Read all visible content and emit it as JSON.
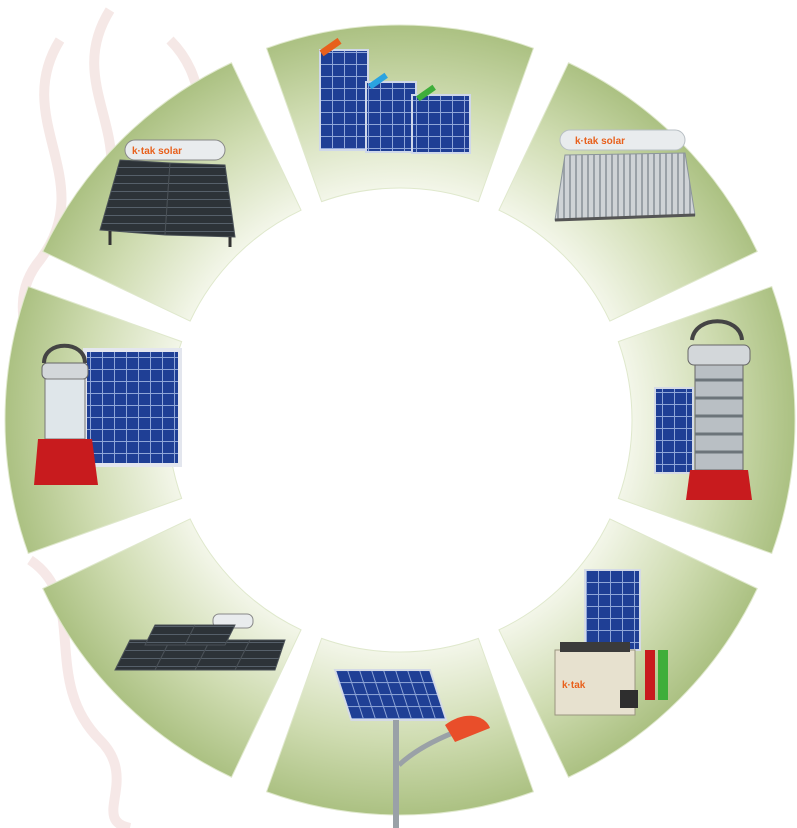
{
  "colors": {
    "background": "#ffffff",
    "segment_light": "#f3f6e9",
    "segment_dark": "#a9bf7f",
    "swirl": "#f5e6e4",
    "solar_blue": "#1f3f95",
    "lantern_red": "#c81b1e",
    "brand_orange": "#e8601c"
  },
  "brand": {
    "logo_text": "kotak solar"
  },
  "products": [
    {
      "icon": "solar-pv-modules-icon"
    },
    {
      "icon": "solar-water-heater-etc-icon"
    },
    {
      "icon": "solar-lantern-with-panel-icon"
    },
    {
      "icon": "solar-home-system-icon"
    },
    {
      "icon": "solar-street-light-icon"
    },
    {
      "icon": "industrial-solar-water-heater-icon"
    },
    {
      "icon": "solar-lantern-small-panel-icon"
    },
    {
      "icon": "solar-water-heater-fpc-icon"
    }
  ]
}
